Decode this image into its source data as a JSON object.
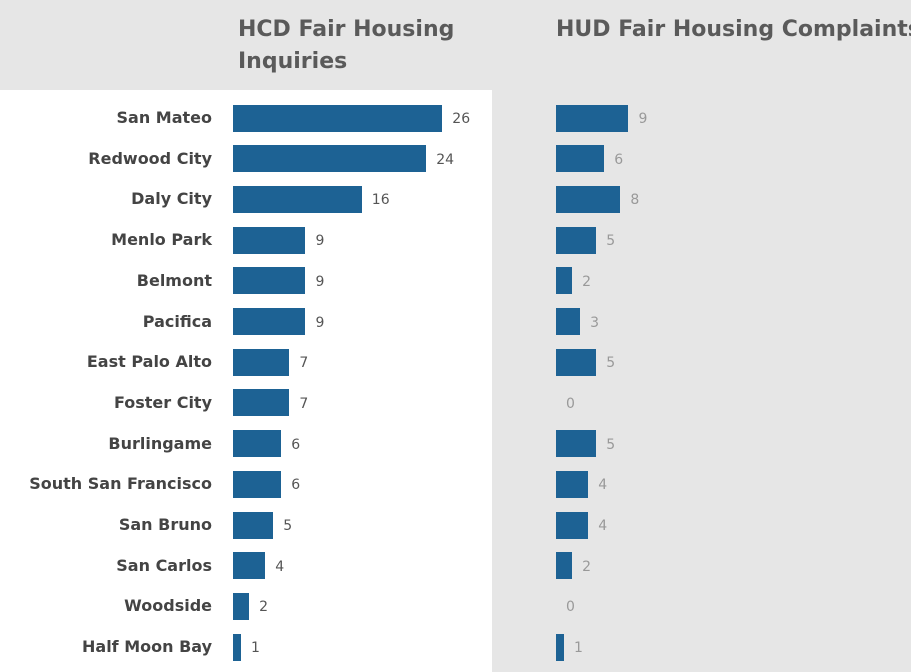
{
  "chart_data": {
    "type": "bar",
    "orientation": "horizontal",
    "categories": [
      "San Mateo",
      "Redwood City",
      "Daly City",
      "Menlo Park",
      "Belmont",
      "Pacifica",
      "East Palo Alto",
      "Foster City",
      "Burlingame",
      "South San Francisco",
      "San Bruno",
      "San Carlos",
      "Woodside",
      "Half Moon Bay"
    ],
    "series": [
      {
        "name": "HCD Fair Housing Inquiries",
        "color": "#1d6294",
        "values": [
          26,
          24,
          16,
          9,
          9,
          9,
          7,
          7,
          6,
          6,
          5,
          4,
          2,
          1
        ]
      },
      {
        "name": "HUD Fair Housing Complaints",
        "color": "#1d6294",
        "values": [
          9,
          6,
          8,
          5,
          2,
          3,
          5,
          0,
          5,
          4,
          4,
          2,
          0,
          1
        ]
      }
    ]
  }
}
